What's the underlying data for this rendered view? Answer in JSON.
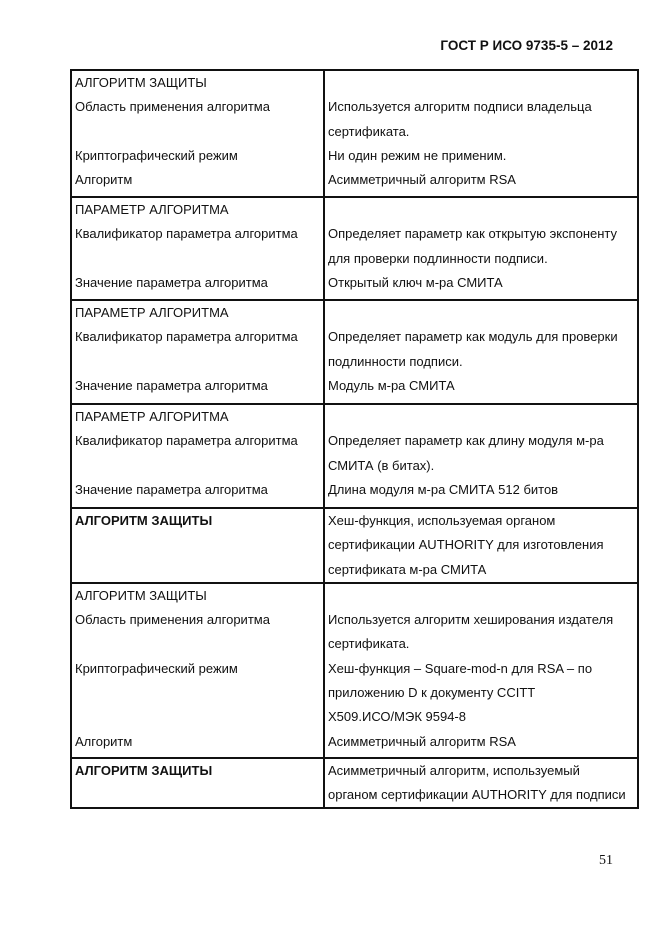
{
  "header": "ГОСТ Р ИСО 9735-5 – 2012",
  "page_number": "51",
  "rows": [
    {
      "left": [
        "АЛГОРИТМ ЗАЩИТЫ",
        "Область применения алгоритма",
        "",
        "Криптографический режим",
        "Алгоритм"
      ],
      "right": [
        "",
        "Используется алгоритм подписи владельца",
        "сертификата.",
        "Ни один режим не применим.",
        "Асимметричный алгоритм RSA"
      ],
      "bold": false,
      "h": 127
    },
    {
      "left": [
        "ПАРАМЕТР АЛГОРИТМА",
        "Квалификатор параметра алгоритма",
        "",
        "Значение параметра алгоритма"
      ],
      "right": [
        "",
        "Определяет параметр как открытую экспоненту",
        "для проверки подлинности подписи.",
        "Открытый ключ м-ра СМИТА"
      ],
      "bold": false,
      "h": 103
    },
    {
      "left": [
        "ПАРАМЕТР АЛГОРИТМА",
        "Квалификатор параметра алгоритма",
        "",
        "Значение параметра алгоритма"
      ],
      "right": [
        "",
        "Определяет параметр как модуль для проверки",
        "подлинности подписи.",
        "Модуль м-ра СМИТА"
      ],
      "bold": false,
      "h": 104
    },
    {
      "left": [
        "ПАРАМЕТР АЛГОРИТМА",
        "Квалификатор параметра алгоритма",
        "",
        "Значение параметра алгоритма"
      ],
      "right": [
        "",
        "Определяет параметр как длину модуля м-ра",
        "СМИТА (в битах).",
        "Длина модуля м-ра СМИТА 512 битов"
      ],
      "bold": false,
      "h": 104
    },
    {
      "left": [
        "АЛГОРИТМ ЗАЩИТЫ"
      ],
      "right": [
        "Хеш-функция, используемая органом",
        "сертификации AUTHORITY для изготовления",
        "сертификата м-ра СМИТА"
      ],
      "bold": true,
      "h": 74
    },
    {
      "left": [
        "АЛГОРИТМ ЗАЩИТЫ",
        "Область применения алгоритма",
        "",
        "Криптографический режим",
        "",
        "",
        "Алгоритм"
      ],
      "right": [
        "",
        "Используется алгоритм хеширования издателя",
        "сертификата.",
        "Хеш-функция – Square-mod-n для RSA – по",
        "приложению D к документу CCITT",
        "X509.ИСО/МЭК 9594-8",
        "Асимметричный алгоритм RSA"
      ],
      "bold": false,
      "h": 175
    },
    {
      "left": [
        "АЛГОРИТМ ЗАЩИТЫ"
      ],
      "right": [
        "Асимметричный алгоритм, используемый",
        "органом сертификации AUTHORITY для подписи"
      ],
      "bold": true,
      "h": 50
    }
  ]
}
